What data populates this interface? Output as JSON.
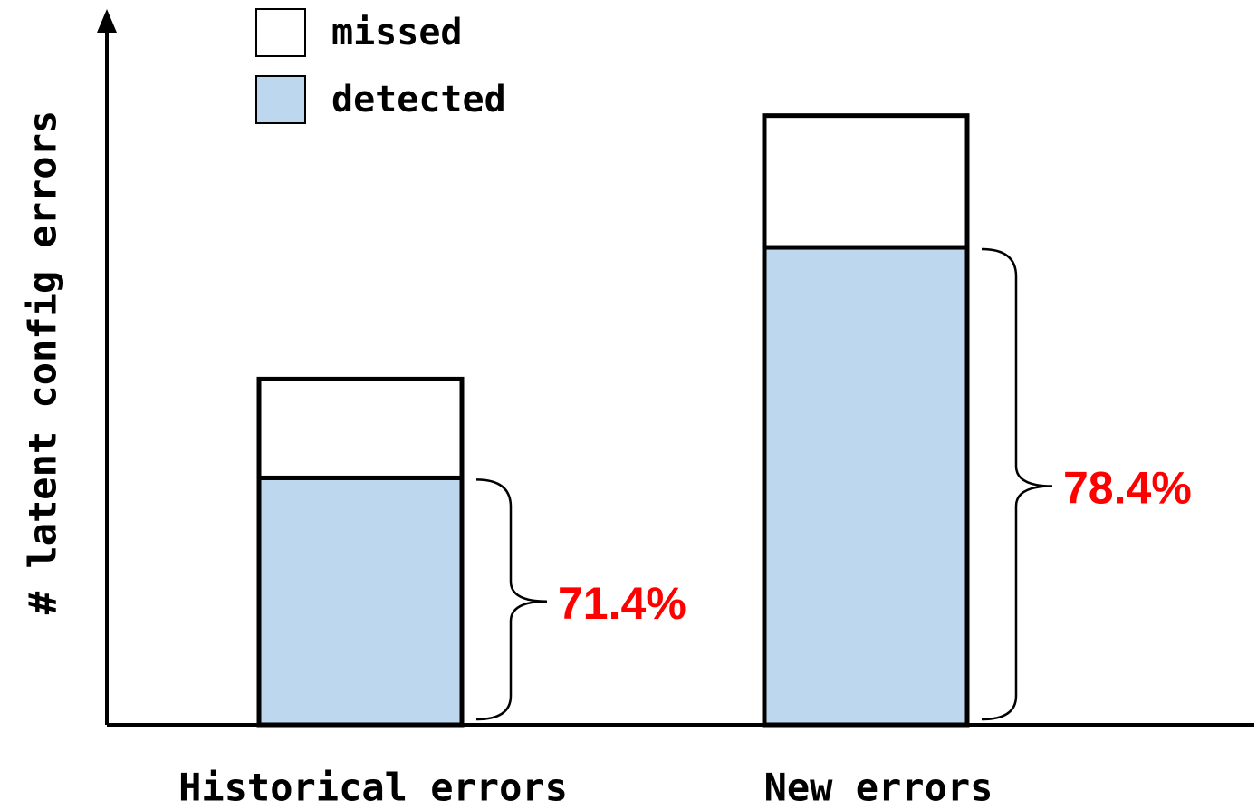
{
  "chart_data": {
    "type": "stacked_bar",
    "ylabel": "# latent config errors",
    "categories": [
      "Historical errors",
      "New errors"
    ],
    "series": [
      {
        "name": "detected",
        "color": "#bdd7ee",
        "values": [
          15,
          29
        ]
      },
      {
        "name": "missed",
        "color": "#ffffff",
        "values": [
          6,
          8
        ]
      }
    ],
    "annotations": [
      "71.4%",
      "78.4%"
    ],
    "annotation_color": "#ff0000",
    "ylim": [
      0,
      43.2
    ],
    "legend": "top-left"
  }
}
